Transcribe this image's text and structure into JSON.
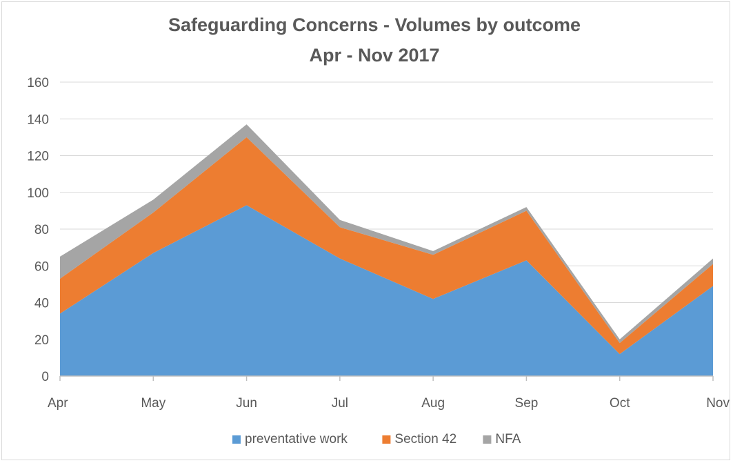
{
  "chart_data": {
    "type": "area",
    "stacked": true,
    "title": "Safeguarding Concerns - Volumes by outcome",
    "subtitle": "Apr - Nov 2017",
    "xlabel": "",
    "ylabel": "",
    "categories": [
      "Apr",
      "May",
      "Jun",
      "Jul",
      "Aug",
      "Sep",
      "Oct",
      "Nov"
    ],
    "series": [
      {
        "name": "preventative work",
        "color": "#5b9bd5",
        "values": [
          34,
          67,
          93,
          64,
          42,
          63,
          12,
          49
        ]
      },
      {
        "name": "Section 42",
        "color": "#ed7d31",
        "values": [
          19,
          22,
          37,
          17,
          24,
          27,
          6,
          12
        ]
      },
      {
        "name": "NFA",
        "color": "#a5a5a5",
        "values": [
          12,
          7,
          7,
          4,
          2,
          2,
          2,
          3
        ]
      }
    ],
    "ylim": [
      0,
      160
    ],
    "yticks": [
      "0",
      "20",
      "40",
      "60",
      "80",
      "100",
      "120",
      "140",
      "160"
    ],
    "grid": true,
    "legend_position": "bottom"
  }
}
